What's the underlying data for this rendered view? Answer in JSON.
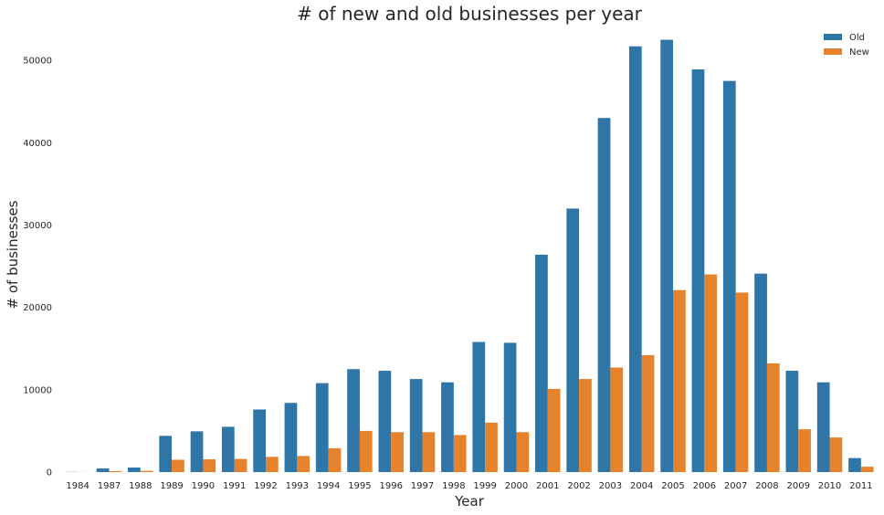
{
  "chart_data": {
    "type": "bar",
    "title": "# of new and old businesses per year",
    "xlabel": "Year",
    "ylabel": "# of businesses",
    "categories": [
      "1984",
      "1987",
      "1988",
      "1989",
      "1990",
      "1991",
      "1992",
      "1993",
      "1994",
      "1995",
      "1996",
      "1997",
      "1998",
      "1999",
      "2000",
      "2001",
      "2002",
      "2003",
      "2004",
      "2005",
      "2006",
      "2007",
      "2008",
      "2009",
      "2010",
      "2011"
    ],
    "series": [
      {
        "name": "Old",
        "color": "#2e75a8",
        "values": [
          20,
          450,
          550,
          4400,
          4950,
          5500,
          7600,
          8400,
          10800,
          12500,
          12300,
          11300,
          10900,
          15800,
          15700,
          26400,
          32000,
          43000,
          51700,
          52500,
          48900,
          47500,
          24100,
          12300,
          10900,
          1700
        ]
      },
      {
        "name": "New",
        "color": "#e6822b",
        "values": [
          10,
          120,
          150,
          1500,
          1550,
          1600,
          1850,
          1950,
          2900,
          5000,
          4850,
          4850,
          4500,
          6000,
          4850,
          10100,
          11300,
          12700,
          14200,
          22100,
          24000,
          21800,
          13200,
          5200,
          4200,
          650
        ]
      }
    ],
    "yticks": [
      0,
      10000,
      20000,
      30000,
      40000,
      50000
    ],
    "ylim": [
      0,
      54000
    ],
    "grid": false,
    "legend": {
      "position": "top-right",
      "labels": [
        "Old",
        "New"
      ]
    }
  }
}
